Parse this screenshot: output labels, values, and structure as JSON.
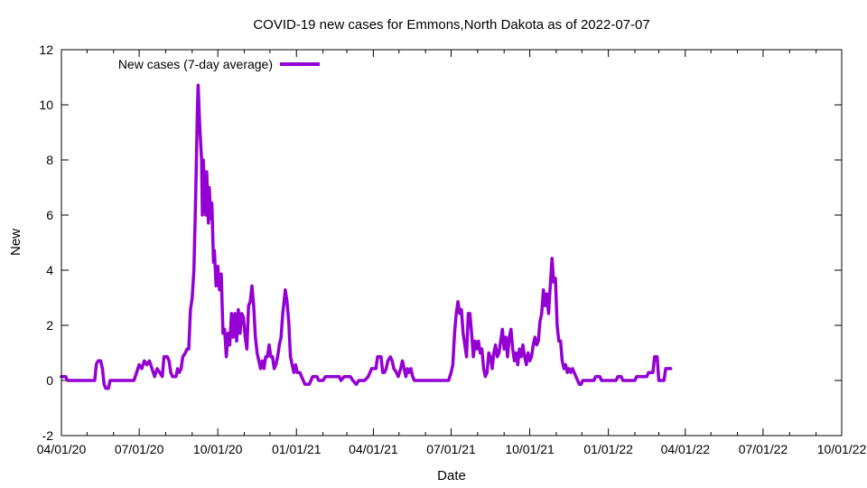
{
  "chart_data": {
    "type": "line",
    "title": "COVID-19 new cases for Emmons,North Dakota as of 2022-07-07",
    "xlabel": "Date",
    "ylabel": "New",
    "ylim": [
      -2,
      12
    ],
    "yticks": [
      "-2",
      "0",
      "2",
      "4",
      "6",
      "8",
      "10",
      "12"
    ],
    "xlim": [
      "2020-04-01",
      "2022-10-01"
    ],
    "xticks": [
      {
        "date": "2020-04-01",
        "label": "04/01/20"
      },
      {
        "date": "2020-07-01",
        "label": "07/01/20"
      },
      {
        "date": "2020-10-01",
        "label": "10/01/20"
      },
      {
        "date": "2021-01-01",
        "label": "01/01/21"
      },
      {
        "date": "2021-04-01",
        "label": "04/01/21"
      },
      {
        "date": "2021-07-01",
        "label": "07/01/21"
      },
      {
        "date": "2021-10-01",
        "label": "10/01/21"
      },
      {
        "date": "2022-01-01",
        "label": "01/01/22"
      },
      {
        "date": "2022-04-01",
        "label": "04/01/22"
      },
      {
        "date": "2022-07-01",
        "label": "07/01/22"
      },
      {
        "date": "2022-10-01",
        "label": "10/01/22"
      }
    ],
    "grid": false,
    "legend_position": "top-left",
    "series": [
      {
        "name": "New cases (7-day average)",
        "color": "#9400d3",
        "points": [
          [
            "2020-04-01",
            0.14
          ],
          [
            "2020-04-06",
            0.14
          ],
          [
            "2020-04-08",
            0.0
          ],
          [
            "2020-05-10",
            0.0
          ],
          [
            "2020-05-12",
            0.6
          ],
          [
            "2020-05-14",
            0.71
          ],
          [
            "2020-05-17",
            0.71
          ],
          [
            "2020-05-19",
            0.43
          ],
          [
            "2020-05-21",
            -0.14
          ],
          [
            "2020-05-23",
            -0.29
          ],
          [
            "2020-05-26",
            -0.29
          ],
          [
            "2020-05-28",
            0.0
          ],
          [
            "2020-06-25",
            0.0
          ],
          [
            "2020-06-28",
            0.29
          ],
          [
            "2020-07-01",
            0.57
          ],
          [
            "2020-07-04",
            0.43
          ],
          [
            "2020-07-07",
            0.71
          ],
          [
            "2020-07-10",
            0.57
          ],
          [
            "2020-07-13",
            0.71
          ],
          [
            "2020-07-16",
            0.43
          ],
          [
            "2020-07-19",
            0.14
          ],
          [
            "2020-07-22",
            0.43
          ],
          [
            "2020-07-25",
            0.29
          ],
          [
            "2020-07-28",
            0.14
          ],
          [
            "2020-07-30",
            0.86
          ],
          [
            "2020-08-03",
            0.86
          ],
          [
            "2020-08-05",
            0.71
          ],
          [
            "2020-08-07",
            0.29
          ],
          [
            "2020-08-09",
            0.14
          ],
          [
            "2020-08-13",
            0.14
          ],
          [
            "2020-08-15",
            0.43
          ],
          [
            "2020-08-17",
            0.29
          ],
          [
            "2020-08-19",
            0.43
          ],
          [
            "2020-08-21",
            0.86
          ],
          [
            "2020-08-24",
            1.0
          ],
          [
            "2020-08-26",
            1.14
          ],
          [
            "2020-08-28",
            1.14
          ],
          [
            "2020-08-30",
            2.57
          ],
          [
            "2020-09-01",
            3.0
          ],
          [
            "2020-09-03",
            4.0
          ],
          [
            "2020-09-05",
            6.57
          ],
          [
            "2020-09-07",
            9.71
          ],
          [
            "2020-09-08",
            10.71
          ],
          [
            "2020-09-10",
            9.14
          ],
          [
            "2020-09-12",
            8.0
          ],
          [
            "2020-09-13",
            6.0
          ],
          [
            "2020-09-14",
            8.0
          ],
          [
            "2020-09-16",
            6.57
          ],
          [
            "2020-09-17",
            6.0
          ],
          [
            "2020-09-18",
            7.57
          ],
          [
            "2020-09-20",
            5.71
          ],
          [
            "2020-09-21",
            7.0
          ],
          [
            "2020-09-23",
            5.86
          ],
          [
            "2020-09-24",
            6.43
          ],
          [
            "2020-09-26",
            4.29
          ],
          [
            "2020-09-27",
            4.71
          ],
          [
            "2020-09-29",
            3.43
          ],
          [
            "2020-10-01",
            4.14
          ],
          [
            "2020-10-03",
            3.29
          ],
          [
            "2020-10-05",
            3.86
          ],
          [
            "2020-10-07",
            1.71
          ],
          [
            "2020-10-09",
            1.86
          ],
          [
            "2020-10-11",
            0.86
          ],
          [
            "2020-10-13",
            1.71
          ],
          [
            "2020-10-15",
            1.29
          ],
          [
            "2020-10-17",
            2.43
          ],
          [
            "2020-10-19",
            1.57
          ],
          [
            "2020-10-21",
            2.43
          ],
          [
            "2020-10-23",
            1.43
          ],
          [
            "2020-10-25",
            2.57
          ],
          [
            "2020-10-27",
            1.71
          ],
          [
            "2020-10-29",
            2.43
          ],
          [
            "2020-10-31",
            2.29
          ],
          [
            "2020-11-02",
            1.57
          ],
          [
            "2020-11-04",
            1.14
          ],
          [
            "2020-11-06",
            2.71
          ],
          [
            "2020-11-08",
            2.86
          ],
          [
            "2020-11-10",
            3.43
          ],
          [
            "2020-11-12",
            2.71
          ],
          [
            "2020-11-14",
            1.57
          ],
          [
            "2020-11-16",
            1.0
          ],
          [
            "2020-11-18",
            0.71
          ],
          [
            "2020-11-20",
            0.43
          ],
          [
            "2020-11-22",
            0.71
          ],
          [
            "2020-11-24",
            0.43
          ],
          [
            "2020-11-26",
            0.86
          ],
          [
            "2020-11-28",
            0.86
          ],
          [
            "2020-11-30",
            1.29
          ],
          [
            "2020-12-02",
            0.86
          ],
          [
            "2020-12-04",
            0.86
          ],
          [
            "2020-12-06",
            0.43
          ],
          [
            "2020-12-08",
            0.57
          ],
          [
            "2020-12-10",
            0.86
          ],
          [
            "2020-12-12",
            1.29
          ],
          [
            "2020-12-14",
            1.57
          ],
          [
            "2020-12-16",
            2.43
          ],
          [
            "2020-12-19",
            3.29
          ],
          [
            "2020-12-21",
            2.86
          ],
          [
            "2020-12-23",
            2.14
          ],
          [
            "2020-12-25",
            0.86
          ],
          [
            "2020-12-27",
            0.57
          ],
          [
            "2020-12-29",
            0.29
          ],
          [
            "2020-12-31",
            0.57
          ],
          [
            "2021-01-02",
            0.29
          ],
          [
            "2021-01-05",
            0.29
          ],
          [
            "2021-01-07",
            0.14
          ],
          [
            "2021-01-09",
            0.0
          ],
          [
            "2021-01-11",
            -0.14
          ],
          [
            "2021-01-16",
            -0.14
          ],
          [
            "2021-01-18",
            0.0
          ],
          [
            "2021-01-20",
            0.14
          ],
          [
            "2021-01-25",
            0.14
          ],
          [
            "2021-01-27",
            0.0
          ],
          [
            "2021-02-01",
            0.0
          ],
          [
            "2021-02-04",
            0.14
          ],
          [
            "2021-02-20",
            0.14
          ],
          [
            "2021-02-22",
            0.0
          ],
          [
            "2021-02-26",
            0.14
          ],
          [
            "2021-03-05",
            0.14
          ],
          [
            "2021-03-08",
            0.0
          ],
          [
            "2021-03-12",
            -0.14
          ],
          [
            "2021-03-15",
            0.0
          ],
          [
            "2021-03-22",
            0.0
          ],
          [
            "2021-03-26",
            0.14
          ],
          [
            "2021-03-30",
            0.43
          ],
          [
            "2021-04-04",
            0.43
          ],
          [
            "2021-04-06",
            0.86
          ],
          [
            "2021-04-10",
            0.86
          ],
          [
            "2021-04-12",
            0.29
          ],
          [
            "2021-04-14",
            0.29
          ],
          [
            "2021-04-16",
            0.43
          ],
          [
            "2021-04-18",
            0.71
          ],
          [
            "2021-04-21",
            0.86
          ],
          [
            "2021-04-23",
            0.71
          ],
          [
            "2021-04-25",
            0.43
          ],
          [
            "2021-04-28",
            0.29
          ],
          [
            "2021-04-30",
            0.14
          ],
          [
            "2021-05-03",
            0.43
          ],
          [
            "2021-05-05",
            0.71
          ],
          [
            "2021-05-07",
            0.43
          ],
          [
            "2021-05-09",
            0.14
          ],
          [
            "2021-05-11",
            0.43
          ],
          [
            "2021-05-13",
            0.29
          ],
          [
            "2021-05-15",
            0.43
          ],
          [
            "2021-05-17",
            0.14
          ],
          [
            "2021-05-19",
            0.0
          ],
          [
            "2021-06-28",
            0.0
          ],
          [
            "2021-07-01",
            0.29
          ],
          [
            "2021-07-03",
            0.57
          ],
          [
            "2021-07-05",
            1.71
          ],
          [
            "2021-07-07",
            2.43
          ],
          [
            "2021-07-09",
            2.86
          ],
          [
            "2021-07-11",
            2.43
          ],
          [
            "2021-07-13",
            2.57
          ],
          [
            "2021-07-15",
            1.71
          ],
          [
            "2021-07-17",
            1.29
          ],
          [
            "2021-07-19",
            0.86
          ],
          [
            "2021-07-21",
            2.43
          ],
          [
            "2021-07-23",
            2.43
          ],
          [
            "2021-07-25",
            1.71
          ],
          [
            "2021-07-27",
            0.86
          ],
          [
            "2021-07-29",
            1.43
          ],
          [
            "2021-07-31",
            1.14
          ],
          [
            "2021-08-02",
            1.43
          ],
          [
            "2021-08-04",
            1.0
          ],
          [
            "2021-08-06",
            1.14
          ],
          [
            "2021-08-08",
            0.43
          ],
          [
            "2021-08-10",
            0.14
          ],
          [
            "2021-08-12",
            0.29
          ],
          [
            "2021-08-14",
            1.0
          ],
          [
            "2021-08-16",
            0.86
          ],
          [
            "2021-08-18",
            0.43
          ],
          [
            "2021-08-20",
            1.0
          ],
          [
            "2021-08-22",
            1.29
          ],
          [
            "2021-08-24",
            0.86
          ],
          [
            "2021-08-26",
            1.0
          ],
          [
            "2021-08-28",
            1.43
          ],
          [
            "2021-08-30",
            1.86
          ],
          [
            "2021-09-01",
            1.14
          ],
          [
            "2021-09-03",
            1.57
          ],
          [
            "2021-09-05",
            0.86
          ],
          [
            "2021-09-07",
            1.57
          ],
          [
            "2021-09-09",
            1.86
          ],
          [
            "2021-09-11",
            1.14
          ],
          [
            "2021-09-13",
            0.71
          ],
          [
            "2021-09-15",
            1.0
          ],
          [
            "2021-09-17",
            0.57
          ],
          [
            "2021-09-19",
            1.14
          ],
          [
            "2021-09-21",
            0.86
          ],
          [
            "2021-09-23",
            1.29
          ],
          [
            "2021-09-25",
            0.86
          ],
          [
            "2021-09-27",
            0.57
          ],
          [
            "2021-09-29",
            1.0
          ],
          [
            "2021-10-01",
            0.71
          ],
          [
            "2021-10-03",
            0.86
          ],
          [
            "2021-10-05",
            1.29
          ],
          [
            "2021-10-07",
            1.57
          ],
          [
            "2021-10-09",
            1.29
          ],
          [
            "2021-10-11",
            1.43
          ],
          [
            "2021-10-13",
            2.14
          ],
          [
            "2021-10-15",
            2.43
          ],
          [
            "2021-10-17",
            3.29
          ],
          [
            "2021-10-19",
            2.71
          ],
          [
            "2021-10-21",
            3.14
          ],
          [
            "2021-10-23",
            2.43
          ],
          [
            "2021-10-25",
            3.43
          ],
          [
            "2021-10-27",
            4.43
          ],
          [
            "2021-10-29",
            3.57
          ],
          [
            "2021-10-31",
            3.71
          ],
          [
            "2021-11-02",
            2.0
          ],
          [
            "2021-11-04",
            1.43
          ],
          [
            "2021-11-06",
            1.43
          ],
          [
            "2021-11-08",
            0.71
          ],
          [
            "2021-11-10",
            0.43
          ],
          [
            "2021-11-12",
            0.57
          ],
          [
            "2021-11-14",
            0.29
          ],
          [
            "2021-11-16",
            0.43
          ],
          [
            "2021-11-18",
            0.29
          ],
          [
            "2021-11-20",
            0.43
          ],
          [
            "2021-11-22",
            0.29
          ],
          [
            "2021-11-24",
            0.14
          ],
          [
            "2021-11-26",
            0.0
          ],
          [
            "2021-11-28",
            -0.14
          ],
          [
            "2021-11-30",
            -0.14
          ],
          [
            "2021-12-02",
            0.0
          ],
          [
            "2021-12-15",
            0.0
          ],
          [
            "2021-12-17",
            0.14
          ],
          [
            "2021-12-22",
            0.14
          ],
          [
            "2021-12-24",
            0.0
          ],
          [
            "2022-01-10",
            0.0
          ],
          [
            "2022-01-12",
            0.14
          ],
          [
            "2022-01-16",
            0.14
          ],
          [
            "2022-01-18",
            0.0
          ],
          [
            "2022-02-01",
            0.0
          ],
          [
            "2022-02-03",
            0.14
          ],
          [
            "2022-02-15",
            0.14
          ],
          [
            "2022-02-17",
            0.29
          ],
          [
            "2022-02-22",
            0.29
          ],
          [
            "2022-02-24",
            0.86
          ],
          [
            "2022-02-27",
            0.86
          ],
          [
            "2022-03-01",
            0.0
          ],
          [
            "2022-03-07",
            0.0
          ],
          [
            "2022-03-09",
            0.43
          ],
          [
            "2022-03-15",
            0.43
          ]
        ]
      }
    ]
  }
}
